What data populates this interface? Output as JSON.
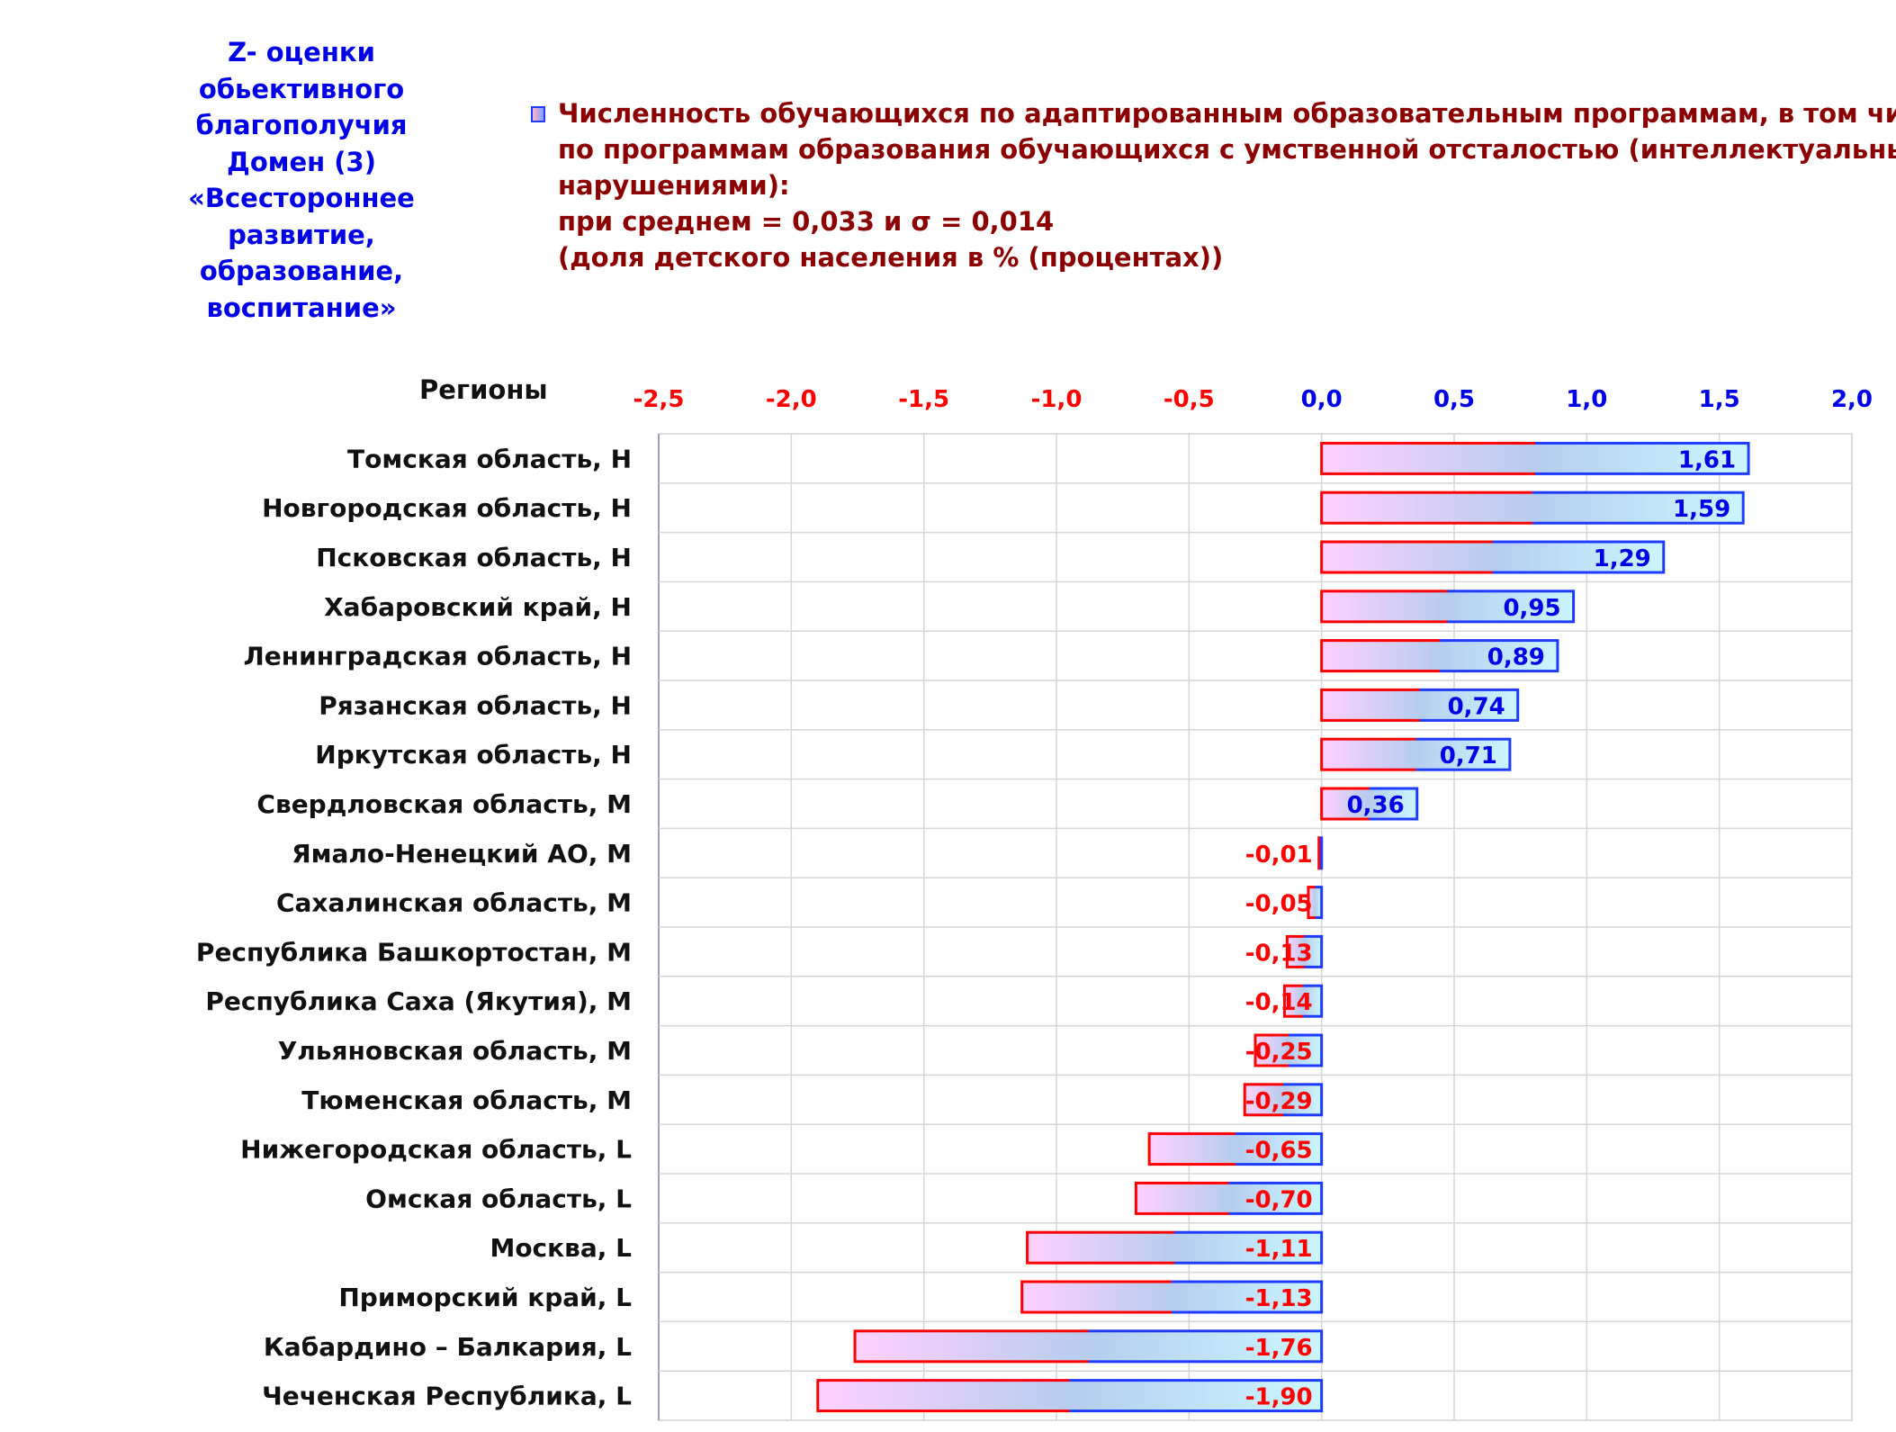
{
  "side_title": [
    "Z- оценки",
    "обьективного",
    "благополучия",
    "Домен (3)",
    "«Всестороннее",
    "развитие,",
    "образование,",
    "воспитание»"
  ],
  "legend": {
    "lines": [
      "Численность обучающихся по адаптированным образовательным программам, в том числе",
      "по программам образования обучающихся с умственной отсталостью (интеллектуальными",
      "нарушениями):",
      "при среднем = 0,033  и σ = 0,014",
      "(доля детского населения в % (процентах))"
    ]
  },
  "chart_data": {
    "type": "bar",
    "orientation": "horizontal",
    "category_header": "Регионы",
    "categories": [
      "Томская область,  H",
      "Новгородская область,  H",
      "Псковская область,  H",
      "Хабаровский край,  H",
      "Ленинградская область,  H",
      "Рязанская область,  H",
      "Иркутская область,  H",
      "Свердловская область,  M",
      "Ямало-Ненецкий АО,  M",
      "Сахалинская область,  M",
      "Республика Башкортостан,  M",
      "Республика Саха (Якутия),  M",
      "Ульяновская область,  M",
      "Тюменская область,  M",
      "Нижегородская область,  L",
      "Омская область,  L",
      "Москва,  L",
      "Приморский край,  L",
      "Кабардино – Балкария,  L",
      "Чеченская Республика,  L"
    ],
    "values": [
      1.61,
      1.59,
      1.29,
      0.95,
      0.89,
      0.74,
      0.71,
      0.36,
      -0.01,
      -0.05,
      -0.13,
      -0.14,
      -0.25,
      -0.29,
      -0.65,
      -0.7,
      -1.11,
      -1.13,
      -1.76,
      -1.9
    ],
    "value_labels": [
      "1,61",
      "1,59",
      "1,29",
      "0,95",
      "0,89",
      "0,74",
      "0,71",
      "0,36",
      "-0,01",
      "-0,05",
      "-0,13",
      "-0,14",
      "-0,25",
      "-0,29",
      "-0,65",
      "-0,70",
      "-1,11",
      "-1,13",
      "-1,76",
      "-1,90"
    ],
    "xlim": [
      -2.5,
      2.0
    ],
    "x_ticks": [
      -2.5,
      -2.0,
      -1.5,
      -1.0,
      -0.5,
      0.0,
      0.5,
      1.0,
      1.5,
      2.0
    ],
    "x_tick_labels": [
      "-2,5",
      "-2,0",
      "-1,5",
      "-1,0",
      "-0,5",
      "0,0",
      "0,5",
      "1,0",
      "1,5",
      "2,0"
    ],
    "x_axis_position": "top",
    "grid": true,
    "legend_position": "top",
    "colors": {
      "negative_text": "#ff0000",
      "positive_text": "#0000e6",
      "bar_border_left": "#ff0000",
      "bar_border_right": "#1f3bff",
      "bar_fill_start": "#ffd0ff",
      "bar_fill_mid": "#b6cdee",
      "bar_fill_end": "#caf6ff"
    }
  }
}
